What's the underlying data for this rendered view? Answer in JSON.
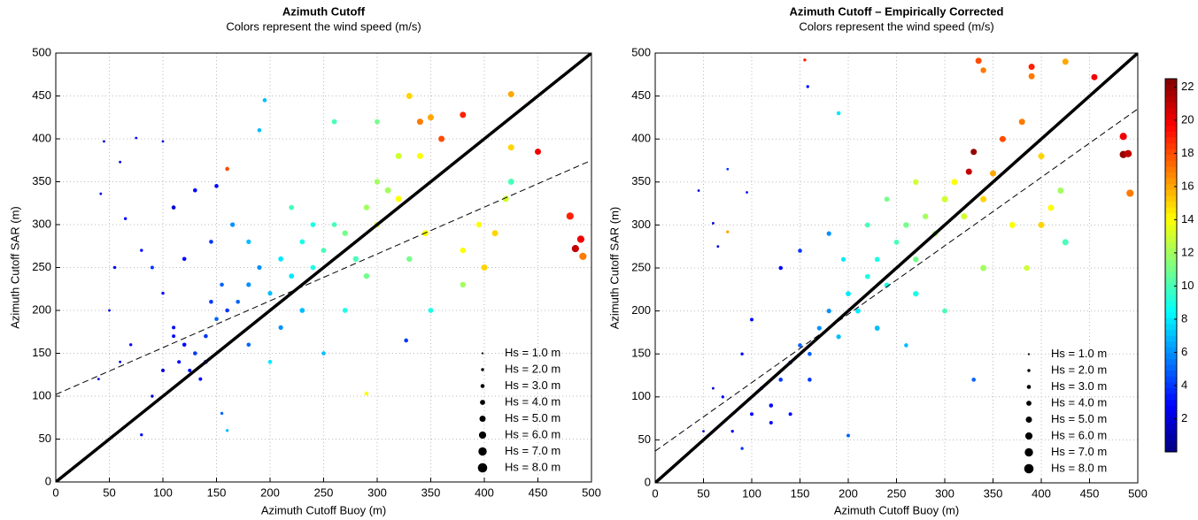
{
  "chart_data": [
    {
      "type": "scatter",
      "title": "Azimuth Cutoff",
      "subtitle": "Colors represent the wind speed (m/s)",
      "xlabel": "Azimuth Cutoff Buoy (m)",
      "ylabel": "Azimuth Cutoff SAR (m)",
      "xlim": [
        0,
        500
      ],
      "ylim": [
        0,
        500
      ],
      "xticks": [
        0,
        50,
        100,
        150,
        200,
        250,
        300,
        350,
        400,
        450,
        500
      ],
      "yticks": [
        0,
        50,
        100,
        150,
        200,
        250,
        300,
        350,
        400,
        450,
        500
      ],
      "grid": true,
      "legend_position": "lower right",
      "colormap": "jet",
      "clim": [
        0,
        22.5
      ],
      "series": [
        {
          "x": [
            45,
            60,
            75,
            100,
            42,
            65,
            55,
            80,
            90,
            100,
            110,
            120,
            130,
            140,
            125,
            115,
            135,
            150,
            160,
            170,
            145,
            155,
            180,
            190,
            200,
            210,
            220,
            230,
            240,
            250,
            260,
            270,
            280,
            290,
            300,
            310,
            320,
            330,
            340,
            350,
            380,
            425,
            450,
            480,
            485,
            490,
            492,
            400,
            420,
            395,
            360,
            340,
            300,
            260,
            195,
            190,
            160,
            150,
            130,
            110,
            120,
            100,
            90,
            80,
            160,
            155,
            200,
            250,
            290,
            327,
            350,
            380,
            380,
            330,
            270,
            230,
            210,
            180,
            140,
            110,
            70,
            60,
            50,
            40,
            320,
            300,
            240,
            220,
            180,
            165,
            145,
            290,
            345,
            410,
            425,
            425
          ],
          "y": [
            397,
            373,
            401,
            397,
            336,
            307,
            250,
            270,
            250,
            220,
            180,
            160,
            150,
            170,
            130,
            140,
            120,
            190,
            200,
            210,
            210,
            230,
            230,
            250,
            220,
            260,
            240,
            280,
            250,
            270,
            300,
            290,
            260,
            320,
            300,
            340,
            330,
            450,
            420,
            425,
            428,
            452,
            385,
            310,
            272,
            283,
            263,
            250,
            330,
            300,
            400,
            380,
            420,
            420,
            445,
            410,
            365,
            345,
            340,
            320,
            260,
            130,
            100,
            55,
            60,
            80,
            140,
            150,
            103,
            165,
            200,
            230,
            270,
            260,
            200,
            200,
            180,
            160,
            140,
            170,
            160,
            140,
            200,
            120,
            380,
            350,
            300,
            320,
            280,
            300,
            280,
            240,
            290,
            290,
            350,
            390
          ],
          "hs": [
            1.5,
            1.5,
            1.5,
            1.5,
            1.5,
            2,
            2,
            2,
            2.5,
            2,
            2.5,
            3,
            3,
            3,
            2.5,
            2.5,
            2.5,
            3,
            3,
            3,
            3,
            3,
            3.5,
            3.5,
            3.5,
            4,
            4,
            4,
            4,
            4,
            4,
            4.5,
            4.5,
            4.5,
            4.5,
            5,
            5,
            5,
            5,
            5,
            5,
            5,
            5,
            6,
            6,
            6,
            6,
            5,
            5,
            4.5,
            5,
            5,
            4,
            4,
            3,
            3,
            3,
            3,
            3,
            3,
            3,
            2.5,
            2,
            2,
            2,
            2,
            3,
            3,
            3,
            3,
            4,
            4.5,
            4.5,
            4.5,
            4,
            4,
            3.5,
            3,
            3,
            2.5,
            2,
            1.5,
            1.5,
            1.5,
            5,
            4.5,
            4,
            4,
            3.5,
            3.5,
            3,
            4.5,
            5,
            5,
            5,
            5
          ],
          "wind": [
            2,
            2,
            3,
            2,
            2,
            3,
            3,
            3,
            4,
            3,
            3,
            3,
            4,
            4,
            3,
            3,
            3,
            5,
            4,
            5,
            4,
            5,
            6,
            6,
            7,
            8,
            8,
            9,
            9,
            10,
            10,
            11,
            10,
            12,
            13,
            12,
            14,
            15,
            17,
            16,
            19,
            16,
            20,
            19,
            21,
            20,
            17,
            15,
            13,
            14,
            18,
            14,
            11,
            10,
            7,
            7,
            18,
            3,
            3,
            2,
            3,
            2,
            2,
            3,
            7,
            5,
            8,
            7,
            14,
            4,
            9,
            12,
            14,
            11,
            9,
            7,
            6,
            5,
            3,
            3,
            3,
            2,
            2,
            2,
            13,
            12,
            9,
            10,
            7,
            6,
            4,
            11,
            14,
            15,
            10,
            15
          ]
        }
      ],
      "reference_lines": [
        {
          "x": [
            0,
            500
          ],
          "y": [
            0,
            500
          ],
          "style": "solid"
        },
        {
          "x": [
            0,
            500
          ],
          "y": [
            102,
            375
          ],
          "style": "dashed"
        }
      ],
      "size_legend": [
        {
          "value": 1,
          "label": "Hs = 1.0 m"
        },
        {
          "value": 2,
          "label": "Hs = 2.0 m"
        },
        {
          "value": 3,
          "label": "Hs = 3.0 m"
        },
        {
          "value": 4,
          "label": "Hs = 4.0 m"
        },
        {
          "value": 5,
          "label": "Hs = 5.0 m"
        },
        {
          "value": 6,
          "label": "Hs = 6.0 m"
        },
        {
          "value": 7,
          "label": "Hs = 7.0 m"
        },
        {
          "value": 8,
          "label": "Hs = 8.0 m"
        }
      ]
    },
    {
      "type": "scatter",
      "title": "Azimuth Cutoff – Empirically Corrected",
      "subtitle": "Colors represent the wind speed (m/s)",
      "xlabel": "Azimuth Cutoff Buoy (m)",
      "ylabel": "Azimuth Cutoff SAR (m)",
      "xlim": [
        0,
        500
      ],
      "ylim": [
        0,
        500
      ],
      "xticks": [
        0,
        50,
        100,
        150,
        200,
        250,
        300,
        350,
        400,
        450,
        500
      ],
      "yticks": [
        0,
        50,
        100,
        150,
        200,
        250,
        300,
        350,
        400,
        450,
        500
      ],
      "grid": true,
      "legend_position": "lower right",
      "colormap": "jet",
      "clim": [
        0,
        22.5
      ],
      "series": [
        {
          "x": [
            45,
            60,
            65,
            75,
            75,
            95,
            155,
            158,
            190,
            335,
            340,
            390,
            390,
            425,
            455,
            485,
            485,
            490,
            492,
            330,
            325,
            70,
            80,
            90,
            100,
            110,
            120,
            130,
            140,
            120,
            150,
            160,
            170,
            180,
            190,
            200,
            210,
            220,
            230,
            240,
            250,
            260,
            270,
            280,
            290,
            300,
            310,
            320,
            350,
            360,
            380,
            400,
            410,
            420,
            425,
            385,
            330,
            200,
            260,
            300,
            180,
            150,
            130,
            100,
            90,
            60,
            50,
            140,
            160,
            230,
            270,
            340,
            370,
            400,
            220,
            270,
            240,
            195,
            340
          ],
          "y": [
            340,
            302,
            275,
            292,
            365,
            338,
            492,
            461,
            430,
            491,
            480,
            484,
            473,
            490,
            472,
            403,
            382,
            383,
            337,
            385,
            362,
            100,
            60,
            40,
            80,
            110,
            90,
            120,
            140,
            70,
            160,
            150,
            180,
            200,
            170,
            220,
            200,
            240,
            260,
            230,
            280,
            300,
            260,
            310,
            290,
            330,
            350,
            310,
            360,
            400,
            420,
            380,
            320,
            340,
            280,
            250,
            120,
            55,
            160,
            200,
            290,
            270,
            250,
            190,
            150,
            110,
            60,
            80,
            120,
            180,
            220,
            250,
            300,
            300,
            300,
            350,
            330,
            260,
            330
          ],
          "hs": [
            1.5,
            1.5,
            1.5,
            2,
            1.5,
            1.5,
            2,
            2,
            3,
            5,
            4.5,
            5,
            5,
            5,
            5,
            6,
            6,
            6,
            6,
            5,
            5,
            2,
            2,
            2,
            2.5,
            2.5,
            3,
            3,
            3,
            2.5,
            3,
            3,
            3.5,
            3.5,
            3.5,
            4,
            4,
            4,
            4,
            4,
            4,
            4.5,
            4.5,
            4.5,
            4.5,
            5,
            5,
            5,
            5,
            5,
            5,
            5,
            5,
            5,
            5,
            4.5,
            3,
            2.5,
            3,
            4,
            3.5,
            3,
            3,
            2.5,
            2,
            1.5,
            1.5,
            2.5,
            3,
            4,
            4.5,
            5,
            5,
            5,
            4,
            4.5,
            4,
            3.5,
            5
          ],
          "wind": [
            2,
            2,
            2,
            16,
            4,
            3,
            19,
            3,
            8,
            18,
            17,
            19,
            17,
            16,
            20,
            20,
            22,
            21,
            17,
            22,
            21,
            3,
            3,
            4,
            3,
            3,
            3,
            4,
            4,
            3,
            5,
            5,
            6,
            6,
            7,
            8,
            8,
            9,
            9,
            9,
            10,
            11,
            11,
            12,
            12,
            13,
            14,
            13,
            16,
            18,
            17,
            15,
            14,
            12,
            10,
            13,
            5,
            5,
            7,
            10,
            6,
            4,
            3,
            3,
            3,
            2,
            2,
            3,
            4,
            7,
            9,
            12,
            14,
            15,
            10,
            13,
            11,
            8,
            15
          ]
        }
      ],
      "reference_lines": [
        {
          "x": [
            0,
            500
          ],
          "y": [
            0,
            500
          ],
          "style": "solid"
        },
        {
          "x": [
            0,
            500
          ],
          "y": [
            37,
            435
          ],
          "style": "dashed"
        }
      ],
      "size_legend": [
        {
          "value": 1,
          "label": "Hs = 1.0 m"
        },
        {
          "value": 2,
          "label": "Hs = 2.0 m"
        },
        {
          "value": 3,
          "label": "Hs = 3.0 m"
        },
        {
          "value": 4,
          "label": "Hs = 4.0 m"
        },
        {
          "value": 5,
          "label": "Hs = 5.0 m"
        },
        {
          "value": 6,
          "label": "Hs = 6.0 m"
        },
        {
          "value": 7,
          "label": "Hs = 7.0 m"
        },
        {
          "value": 8,
          "label": "Hs = 8.0 m"
        }
      ],
      "colorbar": {
        "lim": [
          0,
          22.5
        ],
        "ticks": [
          2,
          4,
          6,
          8,
          10,
          12,
          14,
          16,
          18,
          20,
          22
        ]
      }
    }
  ]
}
